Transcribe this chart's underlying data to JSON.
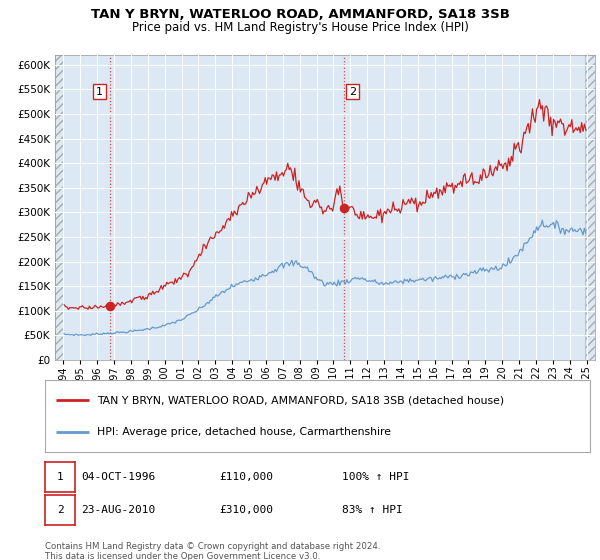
{
  "title1": "TAN Y BRYN, WATERLOO ROAD, AMMANFORD, SA18 3SB",
  "title2": "Price paid vs. HM Land Registry's House Price Index (HPI)",
  "plot_bg": "#dce9f5",
  "red_color": "#cc2222",
  "blue_color": "#6699cc",
  "sale1_date_num": 1996.75,
  "sale1_price": 110000,
  "sale2_date_num": 2010.64,
  "sale2_price": 310000,
  "legend_line1": "TAN Y BRYN, WATERLOO ROAD, AMMANFORD, SA18 3SB (detached house)",
  "legend_line2": "HPI: Average price, detached house, Carmarthenshire",
  "table_row1": [
    "1",
    "04-OCT-1996",
    "£110,000",
    "100% ↑ HPI"
  ],
  "table_row2": [
    "2",
    "23-AUG-2010",
    "£310,000",
    "83% ↑ HPI"
  ],
  "footer": "Contains HM Land Registry data © Crown copyright and database right 2024.\nThis data is licensed under the Open Government Licence v3.0.",
  "ylim": [
    0,
    620000
  ],
  "xlim_start": 1993.5,
  "xlim_end": 2025.5,
  "hatch_left_end": 1994.0,
  "hatch_right_start": 2024.9
}
